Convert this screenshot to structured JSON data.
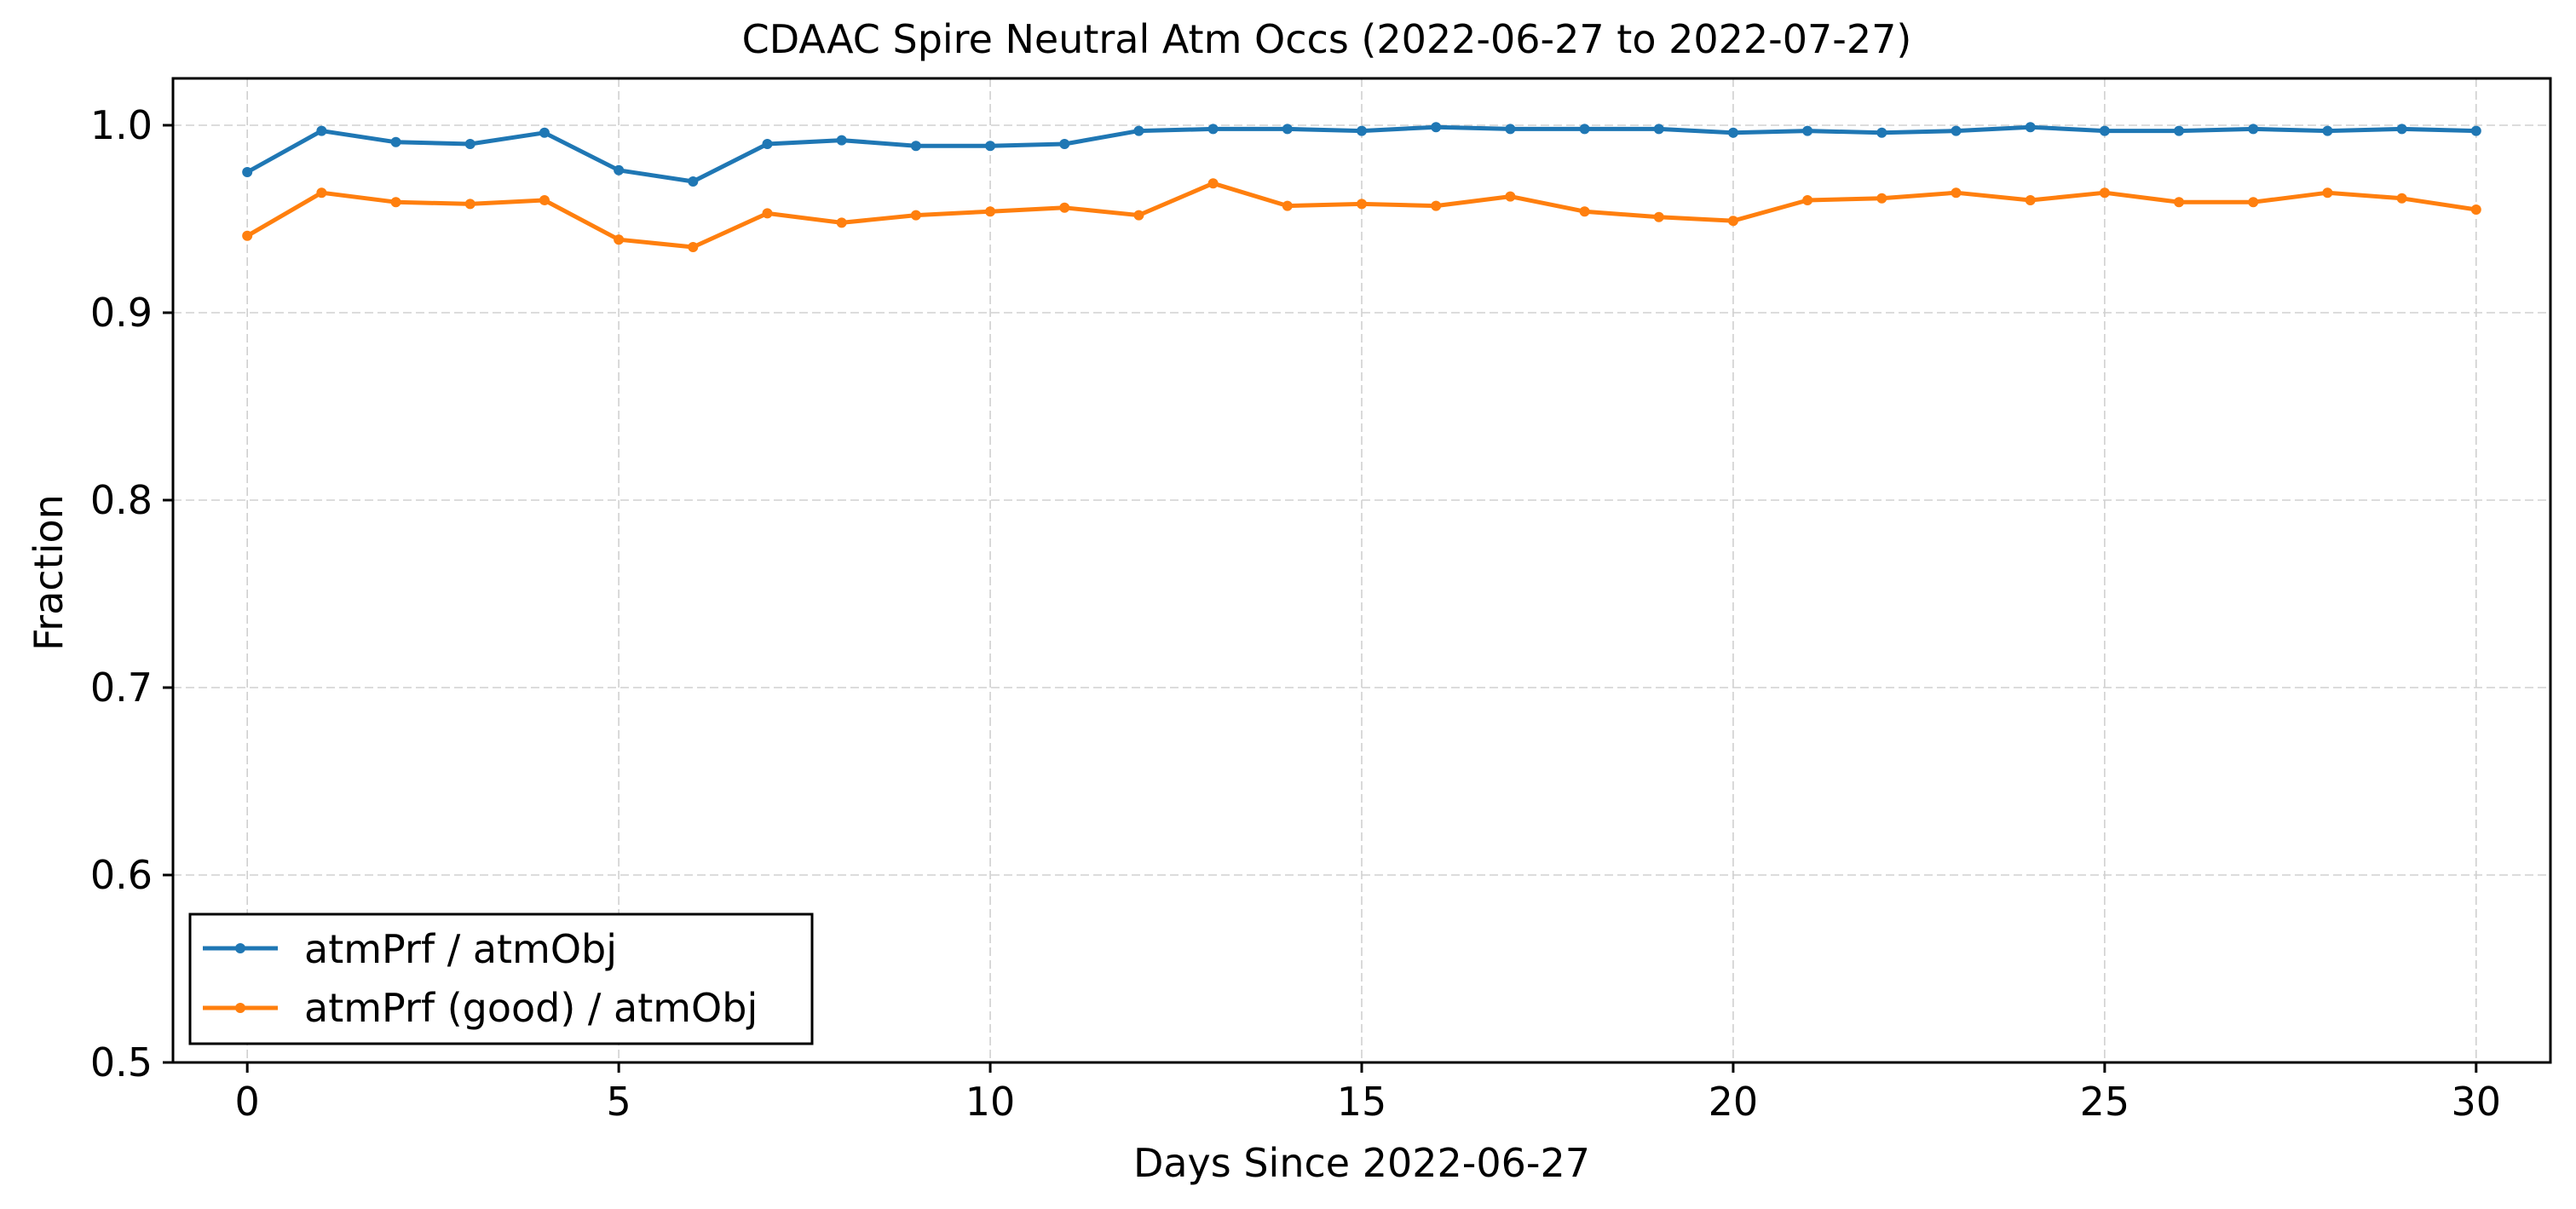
{
  "chart_data": {
    "type": "line",
    "title": "CDAAC Spire Neutral Atm Occs (2022-06-27 to 2022-07-27)",
    "xlabel": "Days Since 2022-06-27",
    "ylabel": "Fraction",
    "xlim": [
      -1,
      31
    ],
    "ylim": [
      0.5,
      1.025
    ],
    "xticks": [
      0,
      5,
      10,
      15,
      20,
      25,
      30
    ],
    "xtick_labels": [
      "0",
      "5",
      "10",
      "15",
      "20",
      "25",
      "30"
    ],
    "yticks": [
      0.5,
      0.6,
      0.7,
      0.8,
      0.9,
      1.0
    ],
    "ytick_labels": [
      "0.5",
      "0.6",
      "0.7",
      "0.8",
      "0.9",
      "1.0"
    ],
    "grid": true,
    "legend_position": "lower-left",
    "x": [
      0,
      1,
      2,
      3,
      4,
      5,
      6,
      7,
      8,
      9,
      10,
      11,
      12,
      13,
      14,
      15,
      16,
      17,
      18,
      19,
      20,
      21,
      22,
      23,
      24,
      25,
      26,
      27,
      28,
      29,
      30
    ],
    "series": [
      {
        "name": "atmPrf / atmObj",
        "color": "#1f77b4",
        "values": [
          0.975,
          0.997,
          0.991,
          0.99,
          0.996,
          0.976,
          0.97,
          0.99,
          0.992,
          0.989,
          0.989,
          0.99,
          0.997,
          0.998,
          0.998,
          0.997,
          0.999,
          0.998,
          0.998,
          0.998,
          0.996,
          0.997,
          0.996,
          0.997,
          0.999,
          0.997,
          0.997,
          0.998,
          0.997,
          0.998,
          0.997
        ]
      },
      {
        "name": "atmPrf (good) / atmObj",
        "color": "#ff7f0e",
        "values": [
          0.941,
          0.964,
          0.959,
          0.958,
          0.96,
          0.939,
          0.935,
          0.953,
          0.948,
          0.952,
          0.954,
          0.956,
          0.952,
          0.969,
          0.957,
          0.958,
          0.957,
          0.962,
          0.954,
          0.951,
          0.949,
          0.96,
          0.961,
          0.964,
          0.96,
          0.964,
          0.959,
          0.959,
          0.964,
          0.961,
          0.955
        ]
      }
    ]
  }
}
